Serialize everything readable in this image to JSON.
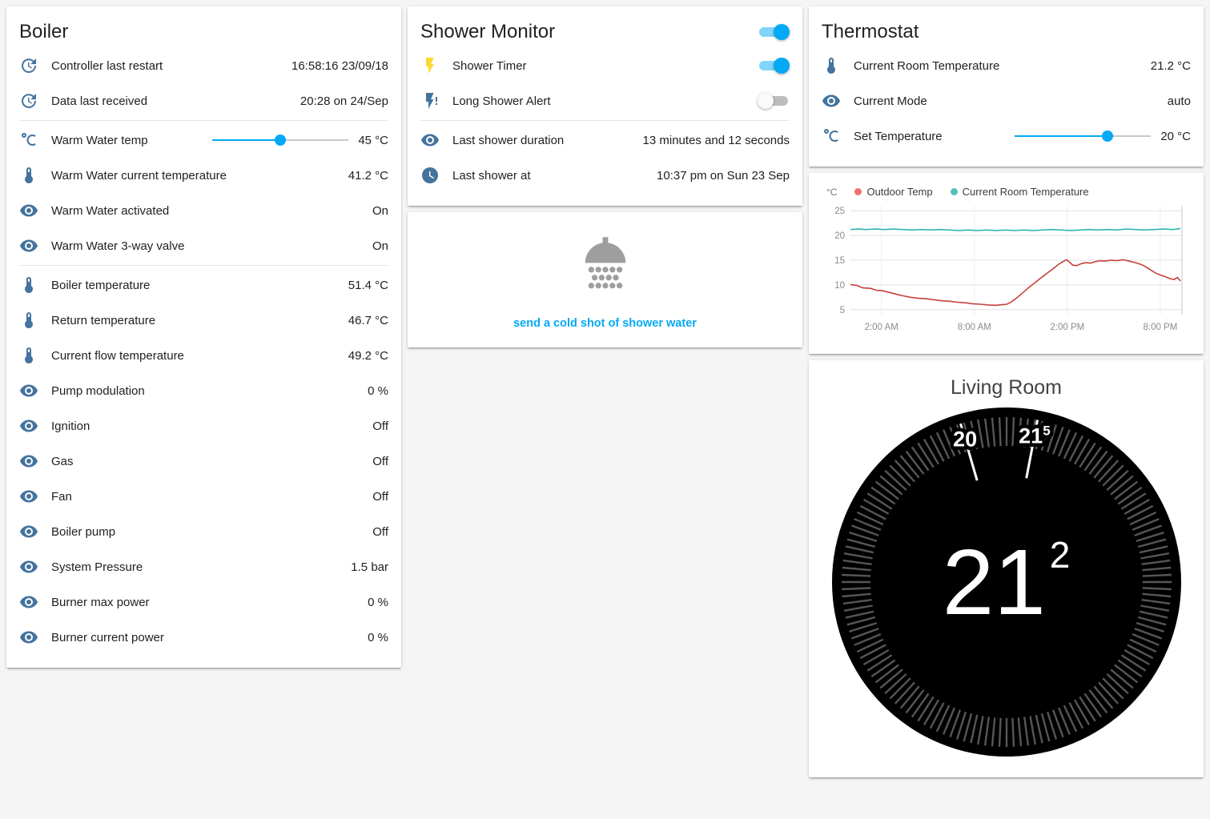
{
  "accent": {
    "primary": "#03a9f4",
    "icon_color": "#44739e",
    "shower_timer_icon": "#fdd835",
    "link": "#03a9f4"
  },
  "boiler": {
    "title": "Boiler",
    "rows": [
      {
        "icon": "clock-restart-icon",
        "label": "Controller last restart",
        "value": "16:58:16 23/09/18"
      },
      {
        "icon": "clock-restart-icon",
        "label": "Data last received",
        "value": "20:28 on 24/Sep",
        "divider_after": true
      },
      {
        "icon": "celsius-icon",
        "label": "Warm Water temp",
        "control": "slider",
        "slider_percent": 50,
        "value": "45 °C"
      },
      {
        "icon": "thermometer-icon",
        "label": "Warm Water current temperature",
        "value": "41.2 °C"
      },
      {
        "icon": "eye-icon",
        "label": "Warm Water activated",
        "value": "On"
      },
      {
        "icon": "eye-icon",
        "label": "Warm Water 3-way valve",
        "value": "On",
        "divider_after": true
      },
      {
        "icon": "thermometer-icon",
        "label": "Boiler temperature",
        "value": "51.4 °C"
      },
      {
        "icon": "thermometer-icon",
        "label": "Return temperature",
        "value": "46.7 °C"
      },
      {
        "icon": "thermometer-icon",
        "label": "Current flow temperature",
        "value": "49.2 °C"
      },
      {
        "icon": "eye-icon",
        "label": "Pump modulation",
        "value": "0 %"
      },
      {
        "icon": "eye-icon",
        "label": "Ignition",
        "value": "Off"
      },
      {
        "icon": "eye-icon",
        "label": "Gas",
        "value": "Off"
      },
      {
        "icon": "eye-icon",
        "label": "Fan",
        "value": "Off"
      },
      {
        "icon": "eye-icon",
        "label": "Boiler pump",
        "value": "Off"
      },
      {
        "icon": "eye-icon",
        "label": "System Pressure",
        "value": "1.5 bar"
      },
      {
        "icon": "eye-icon",
        "label": "Burner max power",
        "value": "0 %"
      },
      {
        "icon": "eye-icon",
        "label": "Burner current power",
        "value": "0 %"
      }
    ]
  },
  "shower": {
    "title": "Shower Monitor",
    "header_toggle_state": "on",
    "rows": [
      {
        "icon": "flash-icon",
        "icon_color": "#fdd835",
        "label": "Shower Timer",
        "control": "toggle",
        "state": "on"
      },
      {
        "icon": "flash-alert-icon",
        "label": "Long Shower Alert",
        "control": "toggle",
        "state": "off",
        "divider_after": true
      },
      {
        "icon": "eye-icon",
        "label": "Last shower duration",
        "value": "13 minutes and 12 seconds"
      },
      {
        "icon": "clock-icon",
        "label": "Last shower at",
        "value": "10:37 pm on Sun 23 Sep"
      }
    ],
    "cold_shot_label": "send a cold shot of shower water"
  },
  "thermostat": {
    "title": "Thermostat",
    "rows": [
      {
        "icon": "thermometer-icon",
        "label": "Current Room Temperature",
        "value": "21.2 °C"
      },
      {
        "icon": "eye-icon",
        "label": "Current Mode",
        "value": "auto"
      },
      {
        "icon": "celsius-icon",
        "label": "Set Temperature",
        "control": "slider",
        "slider_percent": 68,
        "value": "20 °C"
      }
    ]
  },
  "chart_data": {
    "type": "line",
    "unit": "°C",
    "x_range": [
      0,
      21.4
    ],
    "xticks": [
      {
        "h": 2,
        "label": "2:00 AM"
      },
      {
        "h": 8,
        "label": "8:00 AM"
      },
      {
        "h": 14,
        "label": "2:00 PM"
      },
      {
        "h": 20,
        "label": "8:00 PM"
      }
    ],
    "yticks": [
      5,
      10,
      15,
      20,
      25
    ],
    "ylim": [
      4,
      26
    ],
    "legend_position": "top",
    "grid": true,
    "series": [
      {
        "name": "Outdoor Temp",
        "color": "#c4413a",
        "dot": "#ef7070",
        "points": [
          [
            0,
            10.1
          ],
          [
            0.4,
            9.9
          ],
          [
            0.8,
            9.4
          ],
          [
            1.3,
            9.3
          ],
          [
            1.7,
            8.9
          ],
          [
            2.1,
            8.8
          ],
          [
            2.5,
            8.5
          ],
          [
            3,
            8.1
          ],
          [
            3.4,
            7.8
          ],
          [
            3.9,
            7.5
          ],
          [
            4.4,
            7.3
          ],
          [
            4.9,
            7.2
          ],
          [
            5.4,
            7.0
          ],
          [
            5.9,
            6.8
          ],
          [
            6.4,
            6.7
          ],
          [
            6.9,
            6.5
          ],
          [
            7.4,
            6.4
          ],
          [
            7.9,
            6.2
          ],
          [
            8.4,
            6.1
          ],
          [
            8.9,
            5.95
          ],
          [
            9.4,
            5.9
          ],
          [
            9.8,
            6.0
          ],
          [
            10.1,
            6.1
          ],
          [
            10.4,
            6.6
          ],
          [
            10.7,
            7.3
          ],
          [
            11,
            8.1
          ],
          [
            11.3,
            8.9
          ],
          [
            11.6,
            9.7
          ],
          [
            11.9,
            10.4
          ],
          [
            12.2,
            11.2
          ],
          [
            12.5,
            11.9
          ],
          [
            12.8,
            12.6
          ],
          [
            13.1,
            13.3
          ],
          [
            13.4,
            14.1
          ],
          [
            13.7,
            14.7
          ],
          [
            13.95,
            15.1
          ],
          [
            14.15,
            14.6
          ],
          [
            14.35,
            14.0
          ],
          [
            14.6,
            13.9
          ],
          [
            14.9,
            14.3
          ],
          [
            15.2,
            14.5
          ],
          [
            15.5,
            14.4
          ],
          [
            15.8,
            14.7
          ],
          [
            16.1,
            14.9
          ],
          [
            16.4,
            14.8
          ],
          [
            16.8,
            15.0
          ],
          [
            17.2,
            14.9
          ],
          [
            17.6,
            15.1
          ],
          [
            18,
            14.8
          ],
          [
            18.4,
            14.5
          ],
          [
            18.8,
            14.1
          ],
          [
            19.1,
            13.6
          ],
          [
            19.4,
            13.0
          ],
          [
            19.7,
            12.4
          ],
          [
            20,
            12.0
          ],
          [
            20.3,
            11.7
          ],
          [
            20.6,
            11.3
          ],
          [
            20.9,
            11.1
          ],
          [
            21.1,
            11.5
          ],
          [
            21.3,
            10.8
          ]
        ]
      },
      {
        "name": "Current Room Temperature",
        "color": "#2eb8ae",
        "dot": "#52c2b8",
        "points": [
          [
            0,
            21.2
          ],
          [
            0.5,
            21.3
          ],
          [
            1,
            21.2
          ],
          [
            1.6,
            21.3
          ],
          [
            2.2,
            21.2
          ],
          [
            2.8,
            21.3
          ],
          [
            3.4,
            21.2
          ],
          [
            4,
            21.1
          ],
          [
            4.6,
            21.2
          ],
          [
            5.2,
            21.1
          ],
          [
            5.8,
            21.2
          ],
          [
            6.4,
            21.1
          ],
          [
            7,
            21.0
          ],
          [
            7.6,
            21.1
          ],
          [
            8.2,
            21.0
          ],
          [
            8.8,
            21.1
          ],
          [
            9.4,
            21.0
          ],
          [
            10,
            21.1
          ],
          [
            10.6,
            21.0
          ],
          [
            11.2,
            21.1
          ],
          [
            11.8,
            21.0
          ],
          [
            12.4,
            21.1
          ],
          [
            13,
            21.2
          ],
          [
            13.6,
            21.1
          ],
          [
            14.2,
            21.0
          ],
          [
            14.8,
            21.1
          ],
          [
            15.4,
            21.2
          ],
          [
            16,
            21.1
          ],
          [
            16.6,
            21.2
          ],
          [
            17.2,
            21.1
          ],
          [
            17.8,
            21.3
          ],
          [
            18.4,
            21.2
          ],
          [
            19,
            21.1
          ],
          [
            19.6,
            21.2
          ],
          [
            20.2,
            21.3
          ],
          [
            20.8,
            21.2
          ],
          [
            21.3,
            21.4
          ]
        ]
      }
    ]
  },
  "dial": {
    "title": "Living Room",
    "current": {
      "int": "21",
      "sup": "2"
    },
    "marks": [
      {
        "label": "20",
        "sup": "",
        "value": 20
      },
      {
        "label": "21",
        "sup": "5",
        "value": 21.5
      }
    ]
  }
}
